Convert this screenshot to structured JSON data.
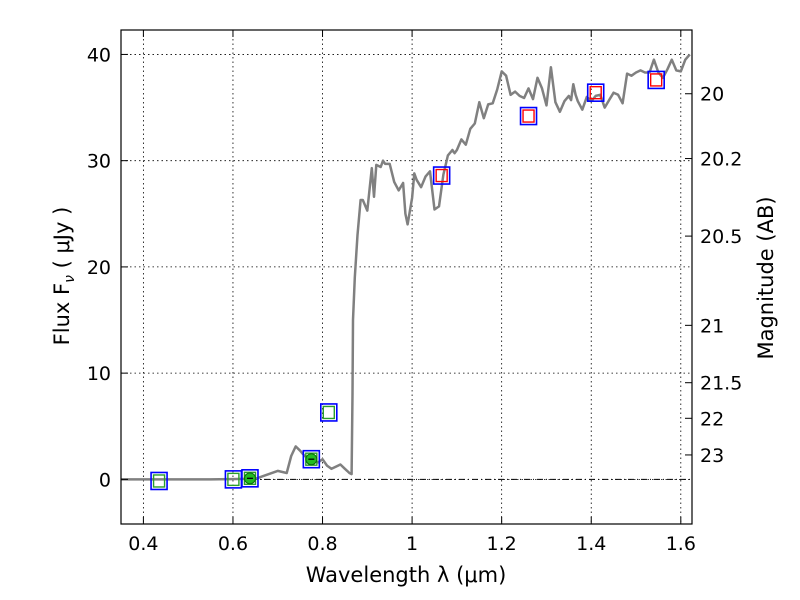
{
  "chart_data": {
    "type": "line",
    "xlabel": "Wavelength  λ (μm)",
    "ylabel": "Flux  F",
    "ylabel_sub": "ν",
    "ylabel_unit": " (  μJy )",
    "y2label": "Magnitude (AB)",
    "xlim": [
      0.35,
      1.625
    ],
    "ylim": [
      -4.2,
      42.3
    ],
    "grid": true,
    "x_ticks": [
      {
        "value": 0.4,
        "label": "0.4"
      },
      {
        "value": 0.6,
        "label": "0.6"
      },
      {
        "value": 0.8,
        "label": "0.8"
      },
      {
        "value": 1.0,
        "label": "1"
      },
      {
        "value": 1.2,
        "label": "1.2"
      },
      {
        "value": 1.4,
        "label": "1.4"
      },
      {
        "value": 1.6,
        "label": "1.6"
      }
    ],
    "y_ticks": [
      {
        "value": 0,
        "label": "0"
      },
      {
        "value": 10,
        "label": "10"
      },
      {
        "value": 20,
        "label": "20"
      },
      {
        "value": 30,
        "label": "30"
      },
      {
        "value": 40,
        "label": "40"
      }
    ],
    "y2_ticks": [
      {
        "flux": 36.3,
        "label": "20"
      },
      {
        "flux": 30.2,
        "label": "20.2"
      },
      {
        "flux": 22.9,
        "label": "20.5"
      },
      {
        "flux": 14.5,
        "label": "21"
      },
      {
        "flux": 9.1,
        "label": "21.5"
      },
      {
        "flux": 5.75,
        "label": "22"
      },
      {
        "flux": 2.3,
        "label": "23"
      }
    ],
    "model_spectrum": {
      "color": "#808080",
      "x": [
        0.35,
        0.45,
        0.55,
        0.65,
        0.7,
        0.72,
        0.73,
        0.74,
        0.75,
        0.76,
        0.77,
        0.78,
        0.79,
        0.8,
        0.81,
        0.82,
        0.83,
        0.84,
        0.85,
        0.855,
        0.86,
        0.865,
        0.867,
        0.868,
        0.872,
        0.878,
        0.885,
        0.89,
        0.9,
        0.91,
        0.915,
        0.92,
        0.93,
        0.935,
        0.94,
        0.95,
        0.96,
        0.97,
        0.98,
        0.985,
        0.99,
        1.0,
        1.005,
        1.01,
        1.02,
        1.03,
        1.04,
        1.05,
        1.06,
        1.07,
        1.08,
        1.09,
        1.095,
        1.1,
        1.11,
        1.12,
        1.13,
        1.14,
        1.15,
        1.16,
        1.17,
        1.18,
        1.19,
        1.2,
        1.21,
        1.22,
        1.23,
        1.24,
        1.25,
        1.26,
        1.27,
        1.28,
        1.29,
        1.3,
        1.31,
        1.32,
        1.33,
        1.34,
        1.35,
        1.355,
        1.36,
        1.365,
        1.37,
        1.38,
        1.39,
        1.4,
        1.41,
        1.42,
        1.43,
        1.44,
        1.45,
        1.46,
        1.47,
        1.48,
        1.49,
        1.5,
        1.51,
        1.52,
        1.53,
        1.54,
        1.55,
        1.56,
        1.57,
        1.58,
        1.59,
        1.6,
        1.61,
        1.62
      ],
      "y": [
        0.0,
        0.0,
        0.0,
        0.05,
        0.8,
        0.6,
        2.2,
        3.1,
        2.7,
        2.2,
        2.0,
        1.8,
        1.6,
        1.9,
        1.3,
        1.0,
        1.2,
        1.4,
        1.0,
        0.8,
        0.6,
        0.5,
        8.0,
        15.0,
        19.0,
        23.0,
        26.3,
        26.3,
        25.3,
        29.3,
        26.6,
        29.6,
        29.4,
        30.0,
        29.7,
        29.7,
        28.0,
        27.2,
        27.9,
        25.0,
        24.0,
        26.5,
        28.8,
        28.2,
        27.5,
        28.5,
        29.0,
        25.4,
        25.7,
        28.7,
        30.5,
        31.0,
        30.7,
        31.0,
        32.0,
        31.5,
        33.0,
        33.5,
        35.5,
        34.0,
        35.3,
        35.4,
        36.7,
        38.4,
        38.0,
        36.2,
        36.5,
        36.1,
        35.9,
        36.8,
        35.8,
        37.8,
        36.8,
        35.2,
        38.8,
        35.5,
        34.6,
        35.6,
        36.1,
        35.7,
        37.2,
        36.2,
        35.6,
        34.8,
        36.0,
        35.6,
        36.1,
        36.2,
        35.0,
        35.7,
        36.4,
        36.2,
        35.4,
        38.2,
        38.0,
        38.3,
        38.5,
        38.3,
        38.3,
        39.5,
        38.3,
        37.8,
        38.6,
        39.5,
        38.5,
        38.4,
        39.5,
        40.0
      ]
    },
    "photometry": [
      {
        "x": 0.435,
        "y": -0.15,
        "model_square": "#2a9e2a",
        "obs_square": "#0000ff"
      },
      {
        "x": 0.601,
        "y": 0.0,
        "model_square": "#2a9e2a",
        "obs_square": "#0000ff"
      },
      {
        "x": 0.638,
        "y": 0.1,
        "model_square": "#2a9e2a",
        "obs_square": "#0000ff",
        "detection": "#22bb22"
      },
      {
        "x": 0.775,
        "y": 1.9,
        "model_square": "#2a9e2a",
        "obs_square": "#0000ff",
        "detection": "#22bb22"
      },
      {
        "x": 0.814,
        "y": 6.3,
        "model_square": "#2a9e2a",
        "obs_square": "#0000ff"
      },
      {
        "x": 1.066,
        "y": 28.6,
        "model_square": "#ff0000",
        "obs_square": "#0000ff"
      },
      {
        "x": 1.26,
        "y": 34.2,
        "model_square": "#ff0000",
        "obs_square": "#0000ff"
      },
      {
        "x": 1.41,
        "y": 36.4,
        "model_square": "#ff0000",
        "obs_square": "#0000ff"
      },
      {
        "x": 1.545,
        "y": 37.6,
        "model_square": "#ff0000",
        "obs_square": "#0000ff"
      }
    ],
    "zero_line_color": "#000000"
  }
}
